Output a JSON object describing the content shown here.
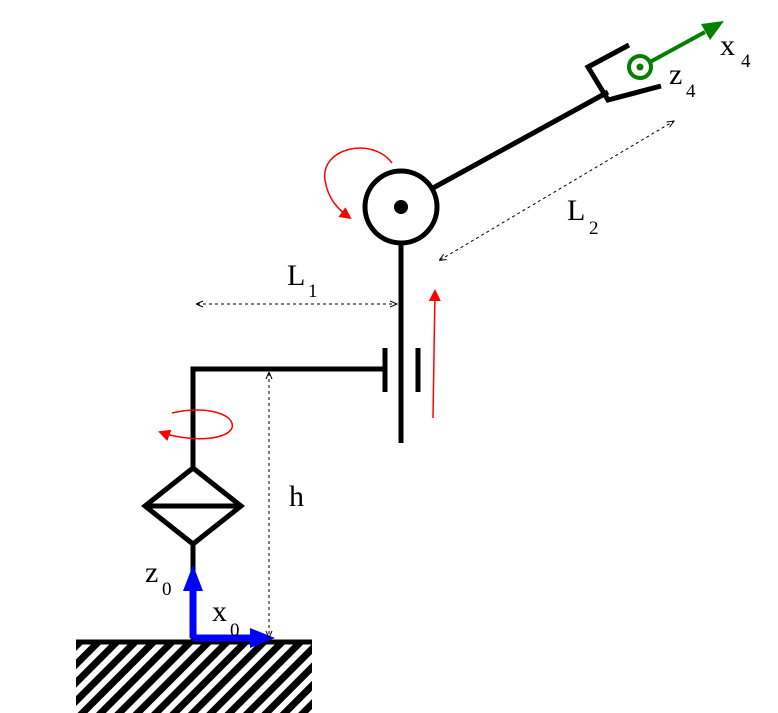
{
  "labels": {
    "L1_main": "L",
    "L1_sub": "1",
    "L2_main": "L",
    "L2_sub": "2",
    "h": "h",
    "z0_main": "z",
    "z0_sub": "0",
    "x0_main": "x",
    "x0_sub": "0",
    "z4_main": "z",
    "z4_sub": "4",
    "x4_main": "x",
    "x4_sub": "4"
  },
  "colors": {
    "structure": "#000000",
    "base_frame": "#0000ff",
    "end_frame": "#008000",
    "motion": "#ff0000"
  },
  "icons": {
    "rotation_base": "curved-arrow-icon",
    "rotation_elbow": "curved-arrow-icon",
    "prismatic": "straight-arrow-icon"
  }
}
